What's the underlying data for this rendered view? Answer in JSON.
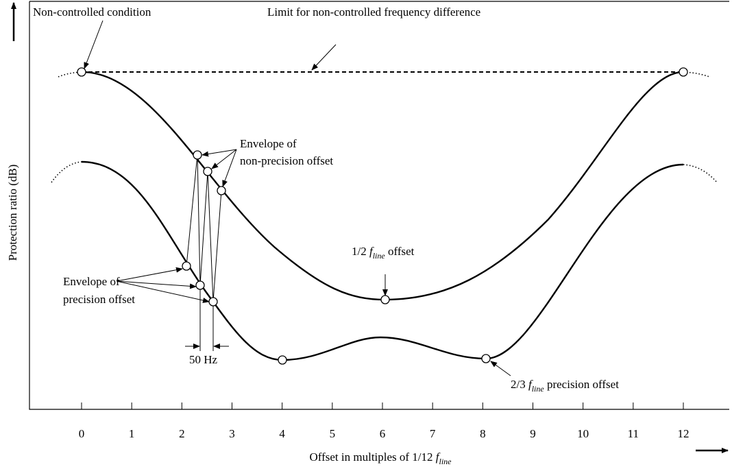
{
  "axes": {
    "y_label": "Protection ratio (dB)",
    "x_label": {
      "text": "Offset in multiples of 1/12 ",
      "symbol": "f",
      "subscript": "line"
    },
    "xticks": [
      0,
      1,
      2,
      3,
      4,
      5,
      6,
      7,
      8,
      9,
      10,
      11,
      12
    ]
  },
  "annotations": {
    "non_controlled": "Non-controlled condition",
    "limit": "Limit for non-controlled frequency difference",
    "envelope_non_precision": [
      "Envelope of",
      "non-precision offset"
    ],
    "half_offset": {
      "prefix": "1/2 ",
      "symbol": "f",
      "subscript": "line",
      "suffix": " offset"
    },
    "envelope_precision": [
      "Envelope of",
      "precision offset"
    ],
    "hz": "50 Hz",
    "two_thirds_offset": {
      "prefix": "2/3 ",
      "symbol": "f",
      "subscript": "line",
      "suffix": " precision offset"
    }
  }
}
